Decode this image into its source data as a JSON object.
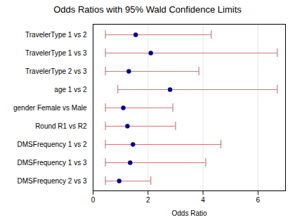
{
  "chart_data": {
    "type": "forest",
    "title": "Odds Ratios with 95% Wald Confidence Limits",
    "xlabel": "Odds Ratio",
    "categories": [
      "TravelerType 1 vs 2",
      "TravelerType 1 vs 3",
      "TravelerType 2 vs 3",
      "age 1 vs 2",
      "gender Female vs Male",
      "Round R1 vs R2",
      "DMSFrequency 1 vs 2",
      "DMSFrequency 1 vs 3",
      "DMSFrequency 2 vs 3"
    ],
    "values": [
      1.55,
      2.1,
      1.3,
      2.8,
      1.1,
      1.25,
      1.45,
      1.35,
      0.95
    ],
    "color": "#00008B",
    "error_bars": {
      "low": [
        0.45,
        0.45,
        0.45,
        0.9,
        0.45,
        0.45,
        0.45,
        0.45,
        0.45
      ],
      "high": [
        4.3,
        6.7,
        3.85,
        6.7,
        2.9,
        3.0,
        4.65,
        4.1,
        2.1
      ],
      "color": "#C87878"
    },
    "xlim": [
      0,
      7.0
    ],
    "xticks": [
      0,
      2,
      4,
      6
    ],
    "grid": true
  }
}
